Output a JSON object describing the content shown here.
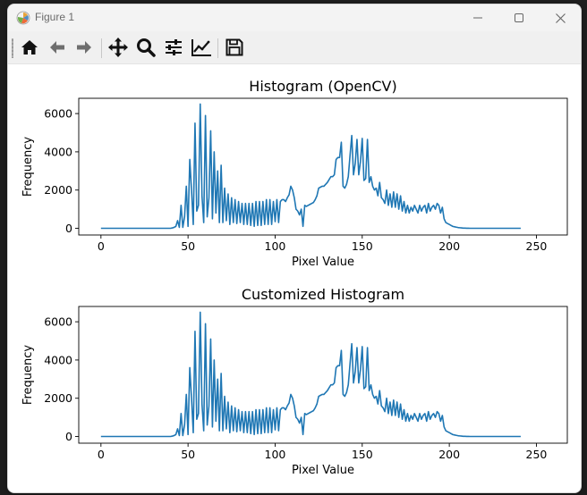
{
  "window": {
    "title": "Figure 1"
  },
  "toolbar": {
    "buttons": [
      {
        "name": "home-icon"
      },
      {
        "name": "back-arrow-icon"
      },
      {
        "name": "forward-arrow-icon"
      },
      {
        "name": "pan-icon"
      },
      {
        "name": "zoom-icon"
      },
      {
        "name": "subplots-icon"
      },
      {
        "name": "edit-axes-icon"
      },
      {
        "name": "save-icon"
      }
    ]
  },
  "colors": {
    "line": "#1f77b4",
    "axes": "#000000",
    "background": "#ffffff"
  },
  "chart_data": [
    {
      "type": "line",
      "title": "Histogram (OpenCV)",
      "xlabel": "Pixel Value",
      "ylabel": "Frequency",
      "xlim": [
        -12.75,
        267.75
      ],
      "ylim": [
        -350,
        6800
      ],
      "xticks": [
        0,
        50,
        100,
        150,
        200,
        250
      ],
      "yticks": [
        0,
        2000,
        4000,
        6000
      ],
      "grid": false,
      "series": [
        {
          "values": [
            0,
            0,
            0,
            0,
            0,
            0,
            0,
            0,
            0,
            0,
            0,
            0,
            0,
            0,
            0,
            0,
            0,
            0,
            0,
            0,
            0,
            0,
            0,
            0,
            0,
            0,
            0,
            0,
            0,
            0,
            0,
            0,
            0,
            0,
            0,
            0,
            0,
            0,
            0,
            0,
            0,
            20,
            50,
            100,
            400,
            50,
            1200,
            50,
            600,
            2200,
            100,
            3600,
            2000,
            200,
            5500,
            900,
            1200,
            6500,
            1700,
            300,
            5900,
            600,
            1600,
            5100,
            500,
            4000,
            800,
            3000,
            300,
            3300,
            300,
            2100,
            400,
            1800,
            200,
            1600,
            300,
            1500,
            250,
            1400,
            300,
            1300,
            200,
            1300,
            200,
            1300,
            150,
            1300,
            100,
            1400,
            150,
            1400,
            150,
            1400,
            200,
            1500,
            200,
            1500,
            200,
            1400,
            350,
            1500,
            300,
            1400,
            1500,
            1500,
            1400,
            1600,
            1750,
            2200,
            2000,
            1600,
            1000,
            900,
            700,
            1000,
            100,
            1200,
            1150,
            1200,
            1250,
            1300,
            1350,
            1500,
            1700,
            2100,
            2150,
            2200,
            2200,
            2300,
            2400,
            2550,
            2700,
            2700,
            2800,
            3600,
            3700,
            3700,
            4500,
            2200,
            2100,
            2300,
            2700,
            3800,
            4850,
            2800,
            3400,
            4650,
            2800,
            3500,
            4700,
            2500,
            2600,
            4650,
            2400,
            2700,
            2200,
            2000,
            2100,
            1700,
            2400,
            1600,
            1500,
            1300,
            2000,
            1200,
            1800,
            1100,
            1900,
            1100,
            1800,
            1000,
            1700,
            900,
            1400,
            800,
            1200,
            800,
            1100,
            900,
            1200,
            1000,
            800,
            1200,
            900,
            1100,
            1200,
            800,
            1300,
            900,
            1100,
            1200,
            1000,
            1300,
            1200,
            800,
            1100,
            500,
            300,
            250,
            200,
            150,
            100,
            80,
            60,
            40,
            30,
            20,
            10,
            10,
            5,
            5,
            0,
            0,
            0,
            0,
            0,
            0,
            0,
            0,
            0,
            0,
            0,
            0,
            0,
            0,
            0,
            0,
            0,
            0,
            0,
            0,
            0,
            0,
            0,
            0,
            0,
            0,
            0,
            0,
            0,
            0
          ]
        }
      ]
    },
    {
      "type": "line",
      "title": "Customized Histogram",
      "xlabel": "Pixel Value",
      "ylabel": "Frequency",
      "xlim": [
        -12.75,
        267.75
      ],
      "ylim": [
        -350,
        6800
      ],
      "xticks": [
        0,
        50,
        100,
        150,
        200,
        250
      ],
      "yticks": [
        0,
        2000,
        4000,
        6000
      ],
      "grid": false,
      "series": [
        {
          "values": [
            0,
            0,
            0,
            0,
            0,
            0,
            0,
            0,
            0,
            0,
            0,
            0,
            0,
            0,
            0,
            0,
            0,
            0,
            0,
            0,
            0,
            0,
            0,
            0,
            0,
            0,
            0,
            0,
            0,
            0,
            0,
            0,
            0,
            0,
            0,
            0,
            0,
            0,
            0,
            0,
            0,
            20,
            50,
            100,
            400,
            50,
            1200,
            50,
            600,
            2200,
            100,
            3600,
            2000,
            200,
            5500,
            900,
            1200,
            6500,
            1700,
            300,
            5900,
            600,
            1600,
            5100,
            500,
            4000,
            800,
            3000,
            300,
            3300,
            300,
            2100,
            400,
            1800,
            200,
            1600,
            300,
            1500,
            250,
            1400,
            300,
            1300,
            200,
            1300,
            200,
            1300,
            150,
            1300,
            100,
            1400,
            150,
            1400,
            150,
            1400,
            200,
            1500,
            200,
            1500,
            200,
            1400,
            350,
            1500,
            300,
            1400,
            1500,
            1500,
            1400,
            1600,
            1750,
            2200,
            2000,
            1600,
            1000,
            900,
            700,
            1000,
            100,
            1200,
            1150,
            1200,
            1250,
            1300,
            1350,
            1500,
            1700,
            2100,
            2150,
            2200,
            2200,
            2300,
            2400,
            2550,
            2700,
            2700,
            2800,
            3600,
            3700,
            3700,
            4500,
            2200,
            2100,
            2300,
            2700,
            3800,
            4850,
            2800,
            3400,
            4650,
            2800,
            3500,
            4700,
            2500,
            2600,
            4650,
            2400,
            2700,
            2200,
            2000,
            2100,
            1700,
            2400,
            1600,
            1500,
            1300,
            2000,
            1200,
            1800,
            1100,
            1900,
            1100,
            1800,
            1000,
            1700,
            900,
            1400,
            800,
            1200,
            800,
            1100,
            900,
            1200,
            1000,
            800,
            1200,
            900,
            1100,
            1200,
            800,
            1300,
            900,
            1100,
            1200,
            1000,
            1300,
            1200,
            800,
            1100,
            500,
            300,
            250,
            200,
            150,
            100,
            80,
            60,
            40,
            30,
            20,
            10,
            10,
            5,
            5,
            0,
            0,
            0,
            0,
            0,
            0,
            0,
            0,
            0,
            0,
            0,
            0,
            0,
            0,
            0,
            0,
            0,
            0,
            0,
            0,
            0,
            0,
            0,
            0,
            0,
            0,
            0,
            0,
            0,
            0
          ]
        }
      ]
    }
  ]
}
